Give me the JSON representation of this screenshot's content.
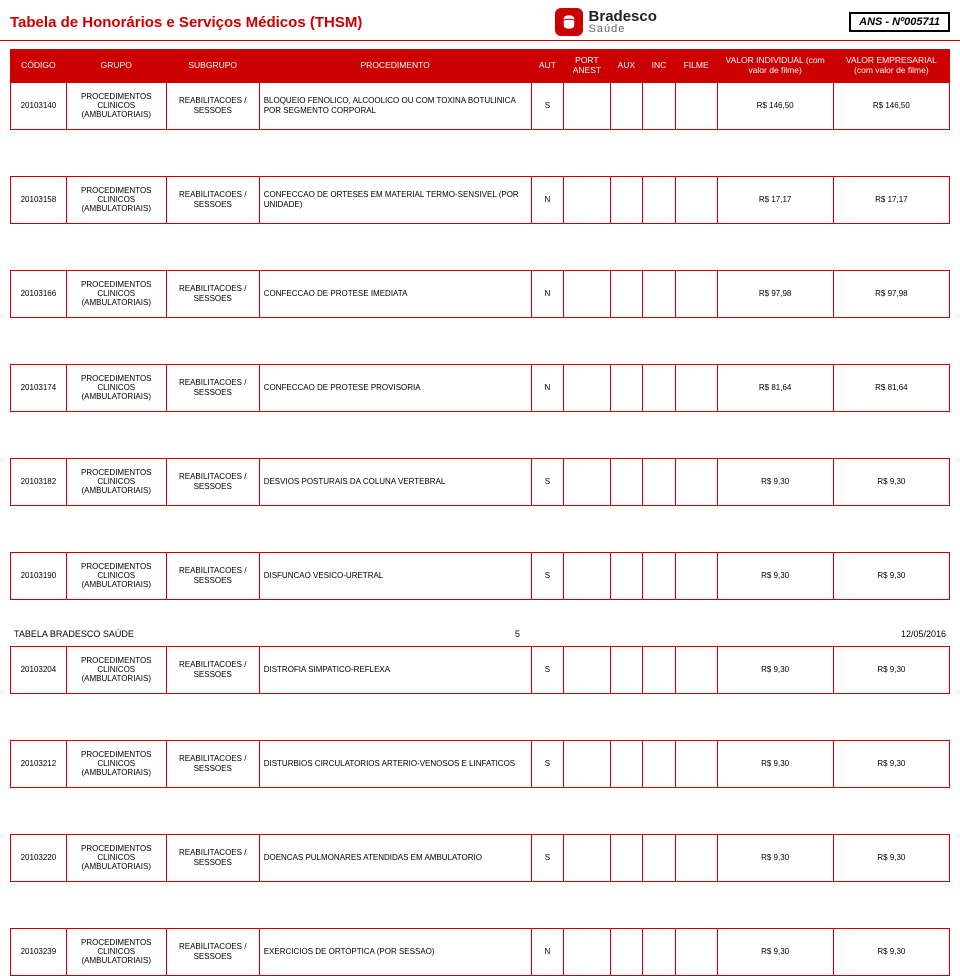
{
  "page": {
    "title": "Tabela de Honorários e Serviços Médicos (THSM)",
    "brand_name": "Bradesco",
    "brand_sub": "Saúde",
    "ans_label": "ANS - Nº005711",
    "footer_left": "TABELA BRADESCO SAÚDE",
    "footer_page": "5",
    "footer_date": "12/05/2016"
  },
  "colors": {
    "accent": "#cc0000",
    "header_bg": "#cc0000",
    "header_fg": "#ffffff",
    "border": "#cc0000",
    "text": "#000000",
    "background": "#ffffff"
  },
  "columns": [
    {
      "key": "codigo",
      "label": "CÓDIGO"
    },
    {
      "key": "grupo",
      "label": "GRUPO"
    },
    {
      "key": "subgrupo",
      "label": "SUBGRUPO"
    },
    {
      "key": "procedimento",
      "label": "PROCEDIMENTO"
    },
    {
      "key": "aut",
      "label": "AUT"
    },
    {
      "key": "port_anest",
      "label": "PORT ANEST"
    },
    {
      "key": "aux",
      "label": "AUX"
    },
    {
      "key": "inc",
      "label": "INC"
    },
    {
      "key": "filme",
      "label": "FILME"
    },
    {
      "key": "valor_ind",
      "label": "VALOR INDIVIDUAL (com valor de filme)"
    },
    {
      "key": "valor_emp",
      "label": "VALOR EMPRESARIAL (com valor de filme)"
    }
  ],
  "rows": [
    {
      "codigo": "20103140",
      "grupo": "PROCEDIMENTOS CLINICOS (AMBULATORIAIS)",
      "subgrupo": "REABILITACOES / SESSOES",
      "procedimento": "BLOQUEIO FENOLICO, ALCOOLICO OU COM TOXINA BOTULINICA POR SEGMENTO CORPORAL",
      "aut": "S",
      "port_anest": "",
      "aux": "",
      "inc": "",
      "filme": "",
      "valor_ind": "R$ 146,50",
      "valor_emp": "R$ 146,50"
    },
    {
      "codigo": "20103158",
      "grupo": "PROCEDIMENTOS CLINICOS (AMBULATORIAIS)",
      "subgrupo": "REABILITACOES / SESSOES",
      "procedimento": "CONFECCAO DE ORTESES EM MATERIAL TERMO-SENSIVEL (POR UNIDADE)",
      "aut": "N",
      "port_anest": "",
      "aux": "",
      "inc": "",
      "filme": "",
      "valor_ind": "R$ 17,17",
      "valor_emp": "R$ 17,17"
    },
    {
      "codigo": "20103166",
      "grupo": "PROCEDIMENTOS CLINICOS (AMBULATORIAIS)",
      "subgrupo": "REABILITACOES / SESSOES",
      "procedimento": "CONFECCAO DE PROTESE IMEDIATA",
      "aut": "N",
      "port_anest": "",
      "aux": "",
      "inc": "",
      "filme": "",
      "valor_ind": "R$ 97,98",
      "valor_emp": "R$ 97,98"
    },
    {
      "codigo": "20103174",
      "grupo": "PROCEDIMENTOS CLINICOS (AMBULATORIAIS)",
      "subgrupo": "REABILITACOES / SESSOES",
      "procedimento": "CONFECCAO DE PROTESE PROVISORIA",
      "aut": "N",
      "port_anest": "",
      "aux": "",
      "inc": "",
      "filme": "",
      "valor_ind": "R$ 81,64",
      "valor_emp": "R$ 81,64"
    },
    {
      "codigo": "20103182",
      "grupo": "PROCEDIMENTOS CLINICOS (AMBULATORIAIS)",
      "subgrupo": "REABILITACOES / SESSOES",
      "procedimento": "DESVIOS POSTURAIS DA COLUNA VERTEBRAL",
      "aut": "S",
      "port_anest": "",
      "aux": "",
      "inc": "",
      "filme": "",
      "valor_ind": "R$ 9,30",
      "valor_emp": "R$ 9,30"
    },
    {
      "codigo": "20103190",
      "grupo": "PROCEDIMENTOS CLINICOS (AMBULATORIAIS)",
      "subgrupo": "REABILITACOES / SESSOES",
      "procedimento": "DISFUNCAO VESICO-URETRAL",
      "aut": "S",
      "port_anest": "",
      "aux": "",
      "inc": "",
      "filme": "",
      "valor_ind": "R$ 9,30",
      "valor_emp": "R$ 9,30"
    },
    {
      "codigo": "20103204",
      "grupo": "PROCEDIMENTOS CLINICOS (AMBULATORIAIS)",
      "subgrupo": "REABILITACOES / SESSOES",
      "procedimento": "DISTROFIA SIMPATICO-REFLEXA",
      "aut": "S",
      "port_anest": "",
      "aux": "",
      "inc": "",
      "filme": "",
      "valor_ind": "R$ 9,30",
      "valor_emp": "R$ 9,30"
    },
    {
      "codigo": "20103212",
      "grupo": "PROCEDIMENTOS CLINICOS (AMBULATORIAIS)",
      "subgrupo": "REABILITACOES / SESSOES",
      "procedimento": "DISTURBIOS CIRCULATORIOS ARTERIO-VENOSOS E LINFATICOS",
      "aut": "S",
      "port_anest": "",
      "aux": "",
      "inc": "",
      "filme": "",
      "valor_ind": "R$ 9,30",
      "valor_emp": "R$ 9,30"
    },
    {
      "codigo": "20103220",
      "grupo": "PROCEDIMENTOS CLINICOS (AMBULATORIAIS)",
      "subgrupo": "REABILITACOES / SESSOES",
      "procedimento": "DOENCAS PULMONARES ATENDIDAS EM AMBULATORIO",
      "aut": "S",
      "port_anest": "",
      "aux": "",
      "inc": "",
      "filme": "",
      "valor_ind": "R$ 9,30",
      "valor_emp": "R$ 9,30"
    },
    {
      "codigo": "20103239",
      "grupo": "PROCEDIMENTOS CLINICOS (AMBULATORIAIS)",
      "subgrupo": "REABILITACOES / SESSOES",
      "procedimento": "EXERCICIOS DE ORTOPTICA (POR SESSAO)",
      "aut": "N",
      "port_anest": "",
      "aux": "",
      "inc": "",
      "filme": "",
      "valor_ind": "R$ 9,30",
      "valor_emp": "R$ 9,30"
    }
  ]
}
